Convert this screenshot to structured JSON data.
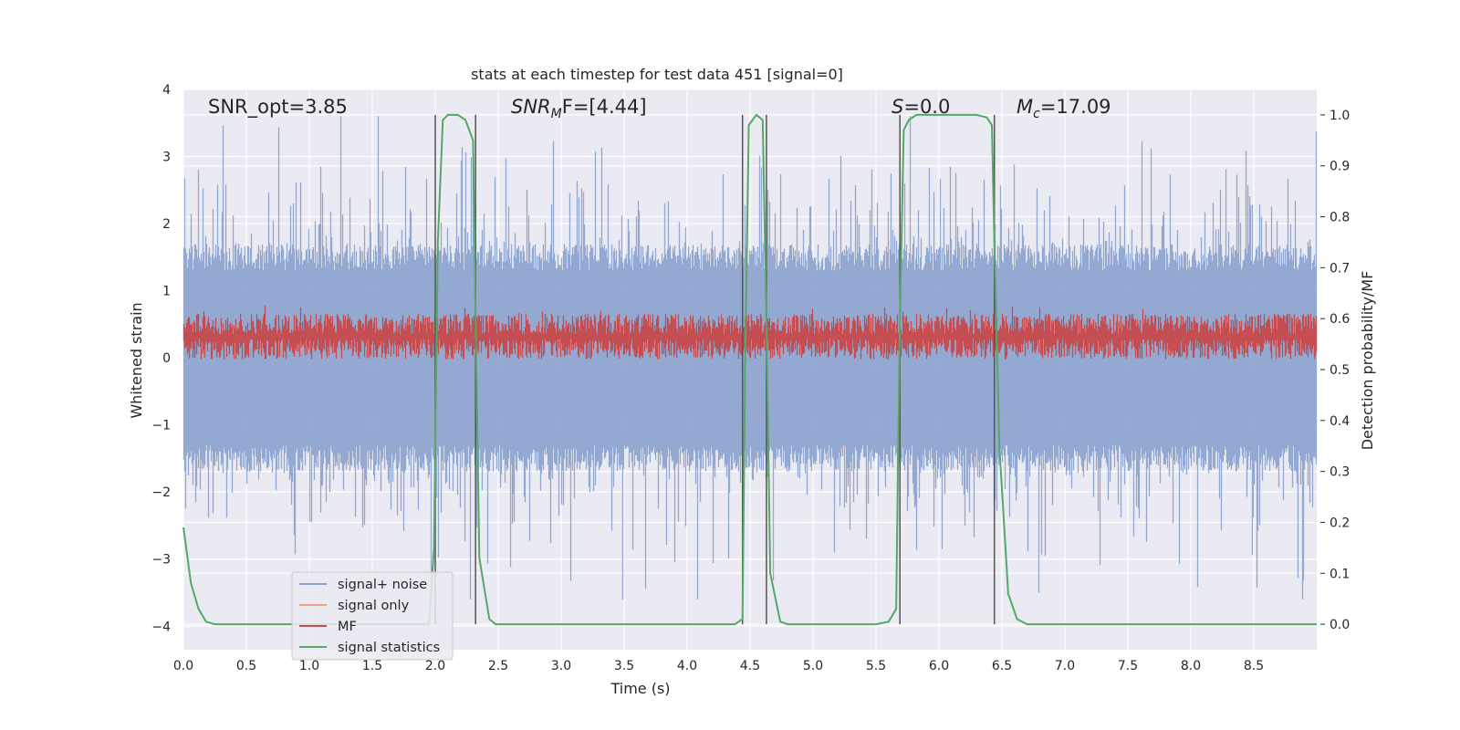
{
  "chart_data": {
    "type": "line",
    "title": "stats at each timestep for test data 451 [signal=0]",
    "xlabel": "Time (s)",
    "ylabel_left": "Whitened strain",
    "ylabel_right": "Detection probability/MF",
    "xlim": [
      0.0,
      9.0
    ],
    "ylim_left": [
      -4.35,
      4.0
    ],
    "ylim_right": [
      -0.05,
      1.05
    ],
    "x_ticks": [
      "0.0",
      "0.5",
      "1.0",
      "1.5",
      "2.0",
      "2.5",
      "3.0",
      "3.5",
      "4.0",
      "4.5",
      "5.0",
      "5.5",
      "6.0",
      "6.5",
      "7.0",
      "7.5",
      "8.0",
      "8.5"
    ],
    "y_left_ticks": [
      "4",
      "3",
      "2",
      "1",
      "0",
      "−1",
      "−2",
      "−3",
      "−4"
    ],
    "y_right_ticks": [
      "1.0",
      "0.9",
      "0.8",
      "0.7",
      "0.6",
      "0.5",
      "0.4",
      "0.3",
      "0.2",
      "0.1",
      "0.0"
    ],
    "annotations": {
      "snr_opt": "SNR_opt=3.85",
      "snr_mf": "SNR",
      "snr_mf_sub": "M",
      "snr_mf_rest": "F=[4.44]",
      "s_symbol": "S",
      "s_rest": "=0.0",
      "mc_symbol": "M",
      "mc_sub": "c",
      "mc_rest": "=17.09"
    },
    "legend": [
      {
        "label": "signal+ noise",
        "color": "#8fa5cf"
      },
      {
        "label": "signal only",
        "color": "#f0a088"
      },
      {
        "label": "MF",
        "color": "#c44e52"
      },
      {
        "label": "signal statistics",
        "color": "#55a868"
      }
    ],
    "detection_boundaries_s": [
      2.0,
      2.32,
      4.44,
      4.63,
      5.69,
      6.44
    ],
    "series": [
      {
        "name": "signal+ noise",
        "axis": "left",
        "kind": "noise",
        "std": 0.85,
        "max_abs": 3.6
      },
      {
        "name": "signal only",
        "axis": "left",
        "values": []
      },
      {
        "name": "MF",
        "axis": "right",
        "kind": "noise",
        "mean": 0.56,
        "range": [
          0.52,
          0.61
        ],
        "peak": 0.66
      },
      {
        "name": "signal statistics",
        "axis": "right",
        "x": [
          0.0,
          0.06,
          0.12,
          0.18,
          0.25,
          0.5,
          1.0,
          1.5,
          1.95,
          1.99,
          2.02,
          2.06,
          2.1,
          2.18,
          2.24,
          2.3,
          2.32,
          2.35,
          2.43,
          2.48,
          2.55,
          3.0,
          3.5,
          4.0,
          4.38,
          4.44,
          4.46,
          4.49,
          4.55,
          4.6,
          4.63,
          4.66,
          4.74,
          4.8,
          5.0,
          5.5,
          5.6,
          5.66,
          5.69,
          5.72,
          5.76,
          5.82,
          6.0,
          6.3,
          6.38,
          6.42,
          6.44,
          6.48,
          6.55,
          6.62,
          6.7,
          7.0,
          8.0,
          9.0
        ],
        "values": [
          0.19,
          0.08,
          0.03,
          0.005,
          0.0,
          0.0,
          0.0,
          0.0,
          0.0,
          0.15,
          0.75,
          0.99,
          1.0,
          1.0,
          0.99,
          0.95,
          0.6,
          0.13,
          0.01,
          0.0,
          0.0,
          0.0,
          0.0,
          0.0,
          0.0,
          0.01,
          0.5,
          0.98,
          1.0,
          0.99,
          0.6,
          0.1,
          0.005,
          0.0,
          0.0,
          0.0,
          0.005,
          0.03,
          0.6,
          0.97,
          0.99,
          1.0,
          1.0,
          1.0,
          0.995,
          0.98,
          0.75,
          0.35,
          0.06,
          0.01,
          0.0,
          0.0,
          0.0,
          0.0
        ]
      }
    ]
  }
}
